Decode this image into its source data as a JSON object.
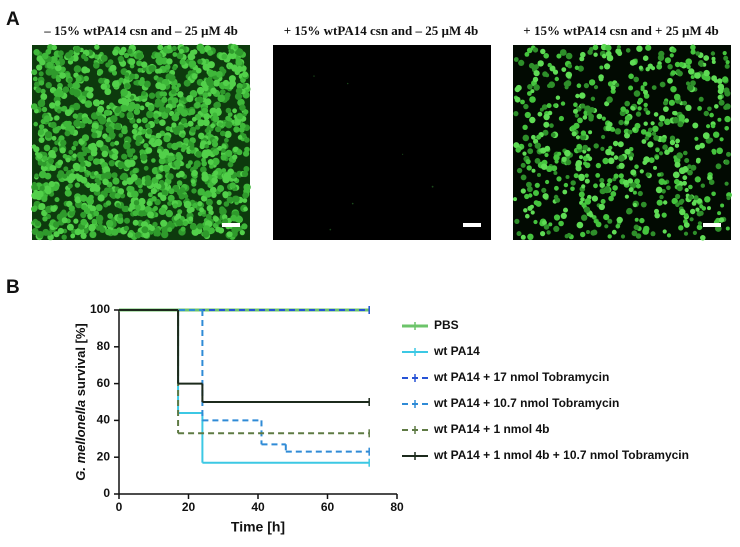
{
  "panels": {
    "a": "A",
    "b": "B"
  },
  "images": [
    {
      "caption": "– 15% wtPA14 csn and – 25 µM 4b"
    },
    {
      "caption": "+ 15% wtPA14 csn and – 25 µM 4b"
    },
    {
      "caption": "+ 15% wtPA14 csn and + 25 µM 4b"
    }
  ],
  "chart_data": {
    "type": "step",
    "xlabel": "Time [h]",
    "ylabel": {
      "species": "G. mellonella",
      "text": "survival [%]"
    },
    "xlim": [
      0,
      80
    ],
    "ylim": [
      0,
      100
    ],
    "xticks": [
      0,
      20,
      40,
      60,
      80
    ],
    "yticks": [
      0,
      20,
      40,
      60,
      80,
      100
    ],
    "series": [
      {
        "name": "PBS",
        "color": "#6cc46a",
        "dashed": false,
        "x": [
          0,
          72
        ],
        "values": [
          100,
          100
        ]
      },
      {
        "name": "wt PA14",
        "color": "#3cc8e4",
        "dashed": false,
        "x": [
          0,
          17,
          24,
          72
        ],
        "values": [
          100,
          44,
          17,
          17
        ]
      },
      {
        "name": "wt PA14 + 17 nmol Tobramycin",
        "color": "#2753d6",
        "dashed": true,
        "x": [
          0,
          72
        ],
        "values": [
          100,
          100
        ]
      },
      {
        "name": "wt PA14 + 10.7 nmol Tobramycin",
        "color": "#2f8bd6",
        "dashed": true,
        "x": [
          0,
          24,
          41,
          48,
          72
        ],
        "values": [
          100,
          40,
          27,
          23,
          23
        ]
      },
      {
        "name": "wt PA14 + 1 nmol 4b",
        "color": "#5e7a44",
        "dashed": true,
        "x": [
          0,
          17,
          72
        ],
        "values": [
          100,
          33,
          33
        ]
      },
      {
        "name": "wt PA14 + 1 nmol 4b + 10.7 nmol Tobramycin",
        "color": "#1c2a1c",
        "dashed": false,
        "x": [
          0,
          17,
          24,
          72
        ],
        "values": [
          100,
          60,
          50,
          50
        ]
      }
    ]
  }
}
